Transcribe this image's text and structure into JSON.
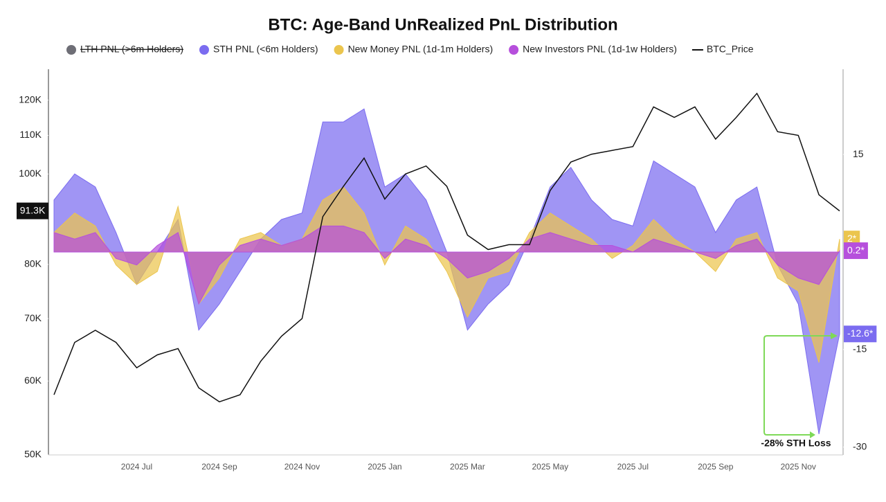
{
  "chart_data": {
    "type": "area",
    "title": "BTC: Age-Band UnRealized PnL Distribution",
    "categories": [
      null,
      null,
      null,
      null,
      "2024 Jul",
      null,
      null,
      null,
      "2024 Sep",
      null,
      null,
      null,
      "2024 Nov",
      null,
      null,
      null,
      "2025 Jan",
      null,
      null,
      null,
      "2025 Mar",
      null,
      null,
      null,
      "2025 May",
      null,
      null,
      null,
      "2025 Jul",
      null,
      null,
      null,
      "2025 Sep",
      null,
      null,
      null,
      "2025 Nov",
      null,
      null
    ],
    "hidden_series": [
      {
        "name": "LTH PNL (>6m Holders)",
        "color": "#6e6e76"
      }
    ],
    "series": [
      {
        "name": "STH PNL (<6m Holders)",
        "color": "#7b6cf0",
        "axis": "y2",
        "end_label": "-12.6*",
        "values": [
          8,
          12,
          10,
          3,
          -5,
          0,
          5,
          -12,
          -8,
          -3,
          2,
          5,
          6,
          20,
          20,
          22,
          10,
          12,
          8,
          0,
          -12,
          -8,
          -5,
          2,
          10,
          13,
          8,
          5,
          4,
          14,
          12,
          10,
          3,
          8,
          10,
          -2,
          -8,
          -28,
          -12.6
        ]
      },
      {
        "name": "New Money PNL (1d-1m Holders)",
        "color": "#ebc54e",
        "axis": "y2",
        "end_label": "2*",
        "values": [
          3,
          6,
          4,
          -2,
          -5,
          -3,
          7,
          -8,
          -4,
          2,
          3,
          1,
          2,
          8,
          10,
          6,
          -2,
          4,
          2,
          -3,
          -10,
          -4,
          -3,
          3,
          6,
          4,
          2,
          -1,
          1,
          5,
          2,
          0,
          -3,
          2,
          3,
          -4,
          -6,
          -17,
          2
        ]
      },
      {
        "name": "New Investors PNL (1d-1w Holders)",
        "color": "#b64fdc",
        "axis": "y2",
        "end_label": "0.2*",
        "values": [
          3,
          2,
          3,
          -1,
          -2,
          1,
          3,
          -8,
          -2,
          1,
          2,
          1,
          2,
          4,
          4,
          3,
          -1,
          2,
          1,
          -1,
          -4,
          -3,
          -1,
          2,
          3,
          2,
          1,
          1,
          0,
          2,
          1,
          0,
          -1,
          1,
          2,
          -2,
          -4,
          -5,
          0.2
        ]
      },
      {
        "name": "BTC_Price",
        "color": "#111111",
        "axis": "y",
        "line": true,
        "end_label": "91.3K",
        "values": [
          58000,
          66000,
          68000,
          66000,
          62000,
          64000,
          65000,
          59000,
          57000,
          58000,
          63000,
          67000,
          70000,
          90000,
          97000,
          104000,
          94000,
          100000,
          102000,
          97000,
          86000,
          83000,
          84000,
          84000,
          96000,
          103000,
          105000,
          106000,
          107000,
          118000,
          115000,
          118000,
          109000,
          115000,
          122000,
          111000,
          110000,
          95000,
          91300
        ]
      }
    ],
    "ylim": [
      50000,
      129500
    ],
    "log_y": true,
    "yticks": [
      {
        "value": 50000,
        "label": "50K"
      },
      {
        "value": 60000,
        "label": "60K"
      },
      {
        "value": 70000,
        "label": "70K"
      },
      {
        "value": 80000,
        "label": "80K"
      },
      {
        "value": 100000,
        "label": "100K"
      },
      {
        "value": 110000,
        "label": "110K"
      },
      {
        "value": 120000,
        "label": "120K"
      }
    ],
    "y2lim": [
      -31.2,
      28.1
    ],
    "y2ticks": [
      -30,
      -15,
      15
    ],
    "grid": false,
    "annotation": "-28% STH Loss"
  }
}
